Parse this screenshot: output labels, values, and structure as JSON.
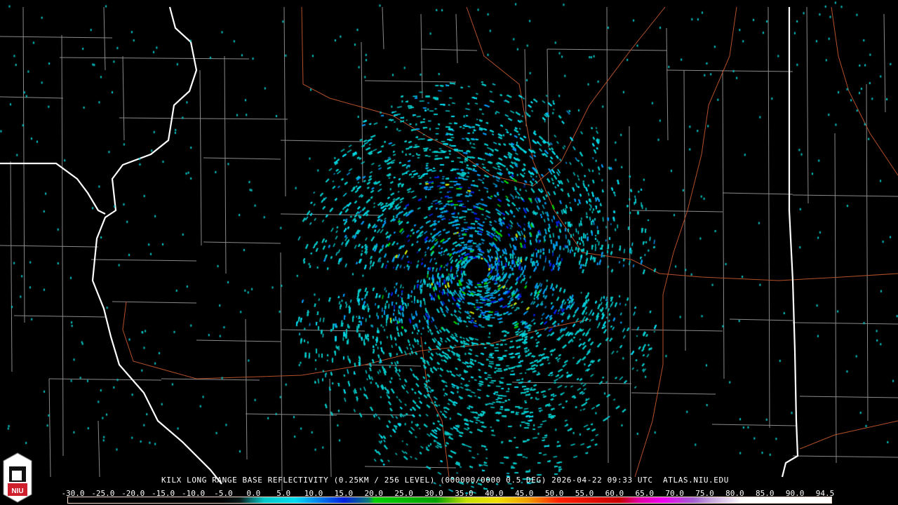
{
  "product_title": "KILX LONG RANGE BASE REFLECTIVITY (0.25KM / 256 LEVEL) (000000/0000 0.5 DEG) 2026-04-22 09:33 UTC  ATLAS.NIU.EDU",
  "logo_text": "NIU",
  "colors": {
    "background": "#000000",
    "county_line": "#8a8a8a",
    "state_line": "#ffffff",
    "highway": "#b4502a",
    "logo_red": "#d0202e"
  },
  "legend": {
    "labels": [
      "-30.0",
      "-25.0",
      "-20.0",
      "-15.0",
      "-10.0",
      "-5.0",
      "0.0",
      "5.0",
      "10.0",
      "15.0",
      "20.0",
      "25.0",
      "30.0",
      "35.0",
      "40.0",
      "45.0",
      "50.0",
      "55.0",
      "60.0",
      "65.0",
      "70.0",
      "75.0",
      "80.0",
      "85.0",
      "90.0",
      "94.5"
    ],
    "color_stops": [
      {
        "dbz": -30,
        "color": "#000000"
      },
      {
        "dbz": -5,
        "color": "#000000"
      },
      {
        "dbz": -2,
        "color": "#0a1a1a"
      },
      {
        "dbz": 0,
        "color": "#0a7a7a"
      },
      {
        "dbz": 2,
        "color": "#00c8c8"
      },
      {
        "dbz": 7,
        "color": "#00dcef"
      },
      {
        "dbz": 10,
        "color": "#0096ef"
      },
      {
        "dbz": 15,
        "color": "#0020e0"
      },
      {
        "dbz": 19,
        "color": "#0a7a7a"
      },
      {
        "dbz": 20,
        "color": "#00d000"
      },
      {
        "dbz": 30,
        "color": "#00a000"
      },
      {
        "dbz": 35,
        "color": "#c8e000"
      },
      {
        "dbz": 40,
        "color": "#f0e000"
      },
      {
        "dbz": 45,
        "color": "#f0a000"
      },
      {
        "dbz": 50,
        "color": "#ff2000"
      },
      {
        "dbz": 60,
        "color": "#c80000"
      },
      {
        "dbz": 63,
        "color": "#e000a0"
      },
      {
        "dbz": 67,
        "color": "#f000f0"
      },
      {
        "dbz": 72,
        "color": "#a060d0"
      },
      {
        "dbz": 75,
        "color": "#c8a8e0"
      },
      {
        "dbz": 80,
        "color": "#ffffff"
      },
      {
        "dbz": 94.5,
        "color": "#ffffff"
      }
    ]
  }
}
